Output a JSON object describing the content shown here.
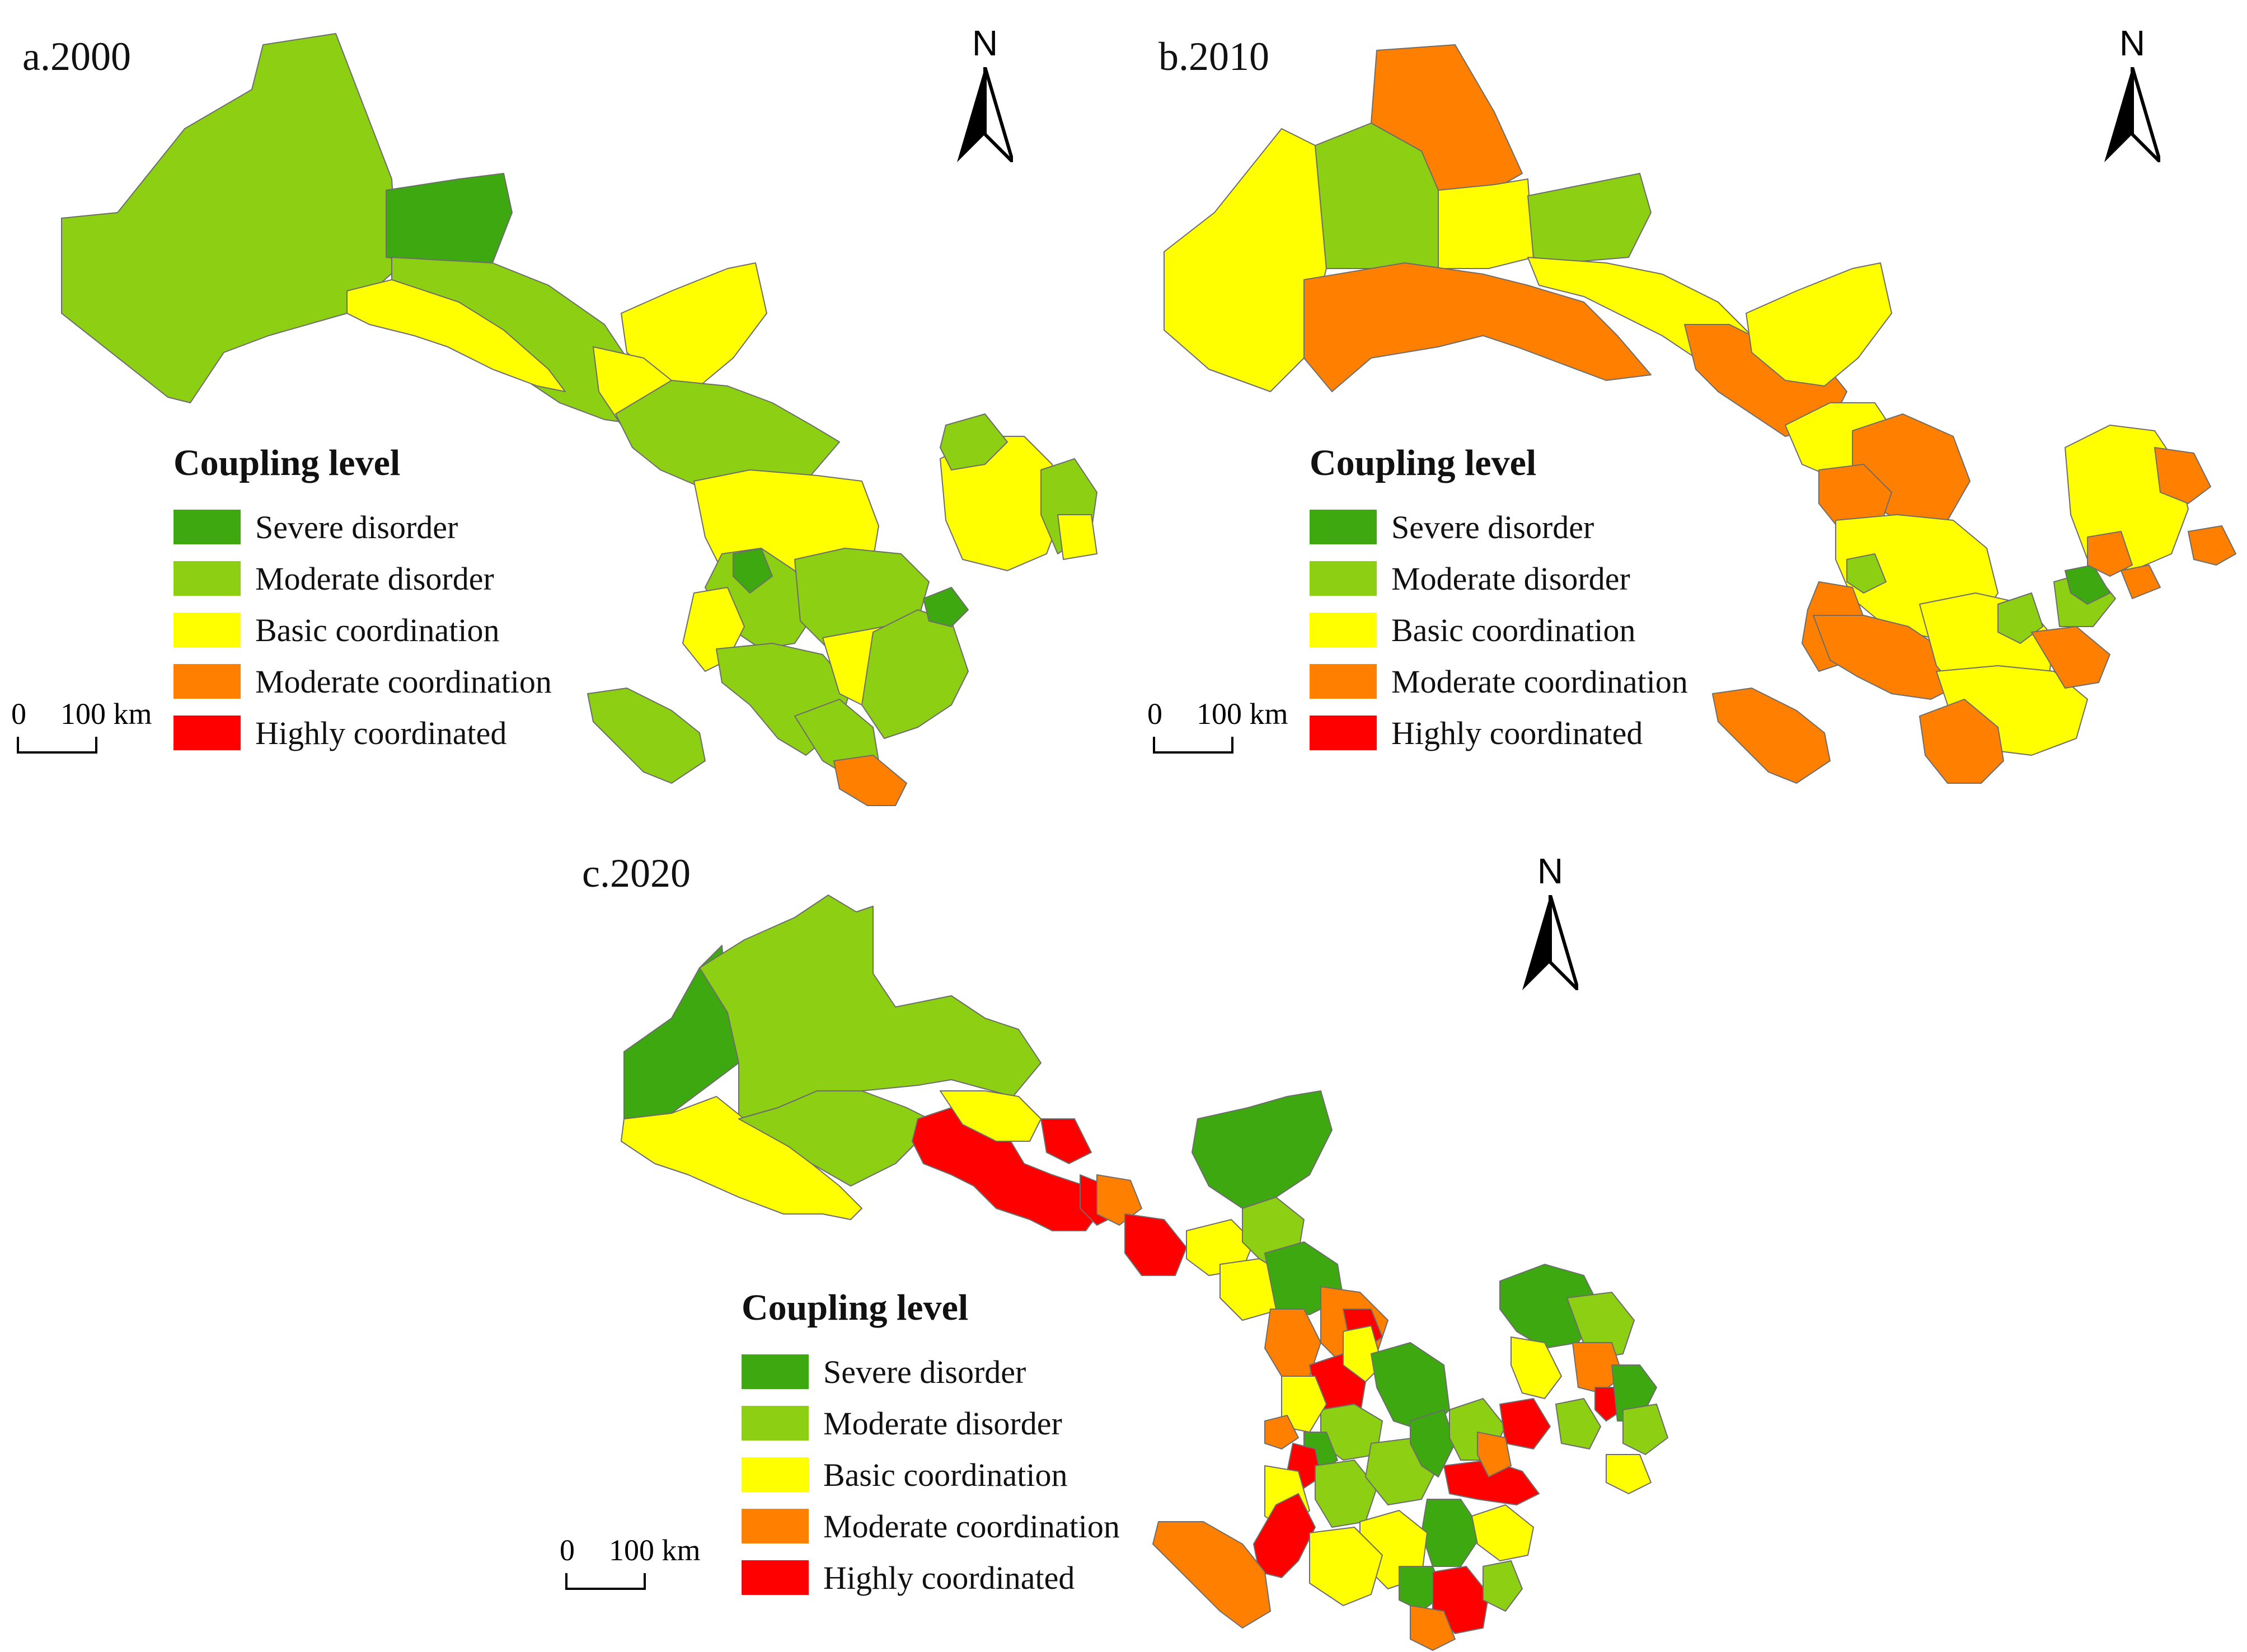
{
  "colors": {
    "severe_disorder": "#3da80f",
    "moderate_disorder": "#8ccf13",
    "basic_coordination": "#ffff00",
    "moderate_coordination": "#ff8000",
    "highly_coordinated": "#ff0000"
  },
  "legend": {
    "title": "Coupling level",
    "items": [
      {
        "label": "Severe disorder",
        "color": "#3da80f"
      },
      {
        "label": "Moderate disorder",
        "color": "#8ccf13"
      },
      {
        "label": "Basic coordination",
        "color": "#ffff00"
      },
      {
        "label": "Moderate coordination",
        "color": "#ff8000"
      },
      {
        "label": "Highly coordinated",
        "color": "#ff0000"
      }
    ]
  },
  "north_arrow": {
    "letter": "N",
    "icon": "north-arrow-icon"
  },
  "scale_bar": {
    "start": "0",
    "end": "100 km"
  },
  "panels": [
    {
      "label": "a.2000"
    },
    {
      "label": "b.2010"
    },
    {
      "label": "c.2020"
    }
  ]
}
